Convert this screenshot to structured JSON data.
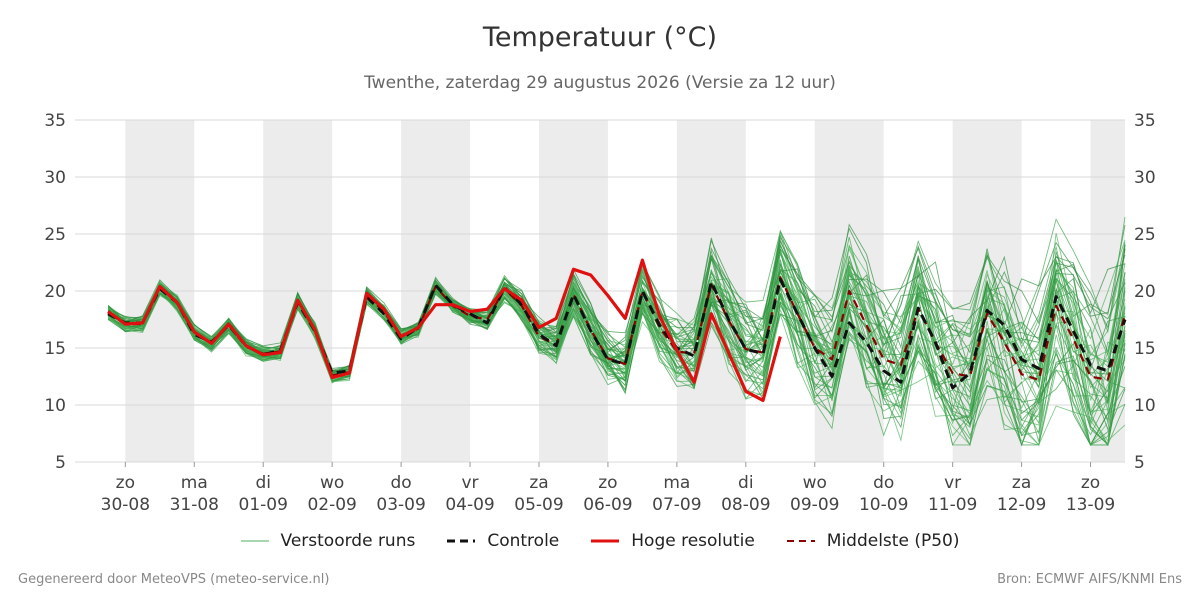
{
  "header": {
    "title": "Temperatuur (°C)",
    "subtitle": "Twenthe, zaterdag 29 augustus 2026 (Versie za 12 uur)"
  },
  "footer": {
    "left": "Gegenereerd door MeteoVPS (meteo-service.nl)",
    "right": "Bron: ECMWF AIFS/KNMI Ens"
  },
  "legend": [
    {
      "label": "Verstoorde runs",
      "color": "#3aa24a",
      "style": "thin-solid"
    },
    {
      "label": "Controle",
      "color": "#111111",
      "style": "dashed"
    },
    {
      "label": "Hoge resolutie",
      "color": "#e01010",
      "style": "solid"
    },
    {
      "label": "Middelste (P50)",
      "color": "#8b0000",
      "style": "dashed"
    }
  ],
  "chart_data": {
    "type": "line",
    "title": "Temperatuur (°C)",
    "ylim": [
      5,
      35
    ],
    "yticks": [
      5,
      10,
      15,
      20,
      25,
      30,
      35
    ],
    "grid": true,
    "legend_position": "bottom",
    "x_unit": "days since 30-08 00:00 (axis labels shown as day + date)",
    "xlim": [
      -0.73,
      14.5
    ],
    "x_tick_labels": [
      {
        "day": "zo",
        "date": "30-08",
        "x": 0
      },
      {
        "day": "ma",
        "date": "31-08",
        "x": 1
      },
      {
        "day": "di",
        "date": "01-09",
        "x": 2
      },
      {
        "day": "wo",
        "date": "02-09",
        "x": 3
      },
      {
        "day": "do",
        "date": "03-09",
        "x": 4
      },
      {
        "day": "vr",
        "date": "04-09",
        "x": 5
      },
      {
        "day": "za",
        "date": "05-09",
        "x": 6
      },
      {
        "day": "zo",
        "date": "06-09",
        "x": 7
      },
      {
        "day": "ma",
        "date": "07-09",
        "x": 8
      },
      {
        "day": "di",
        "date": "08-09",
        "x": 9
      },
      {
        "day": "wo",
        "date": "09-09",
        "x": 10
      },
      {
        "day": "do",
        "date": "10-09",
        "x": 11
      },
      {
        "day": "vr",
        "date": "11-09",
        "x": 12
      },
      {
        "day": "za",
        "date": "12-09",
        "x": 13
      },
      {
        "day": "zo",
        "date": "13-09",
        "x": 14
      }
    ],
    "shaded_bands": [
      [
        0,
        1
      ],
      [
        2,
        3
      ],
      [
        4,
        5
      ],
      [
        6,
        7
      ],
      [
        8,
        9
      ],
      [
        10,
        11
      ],
      [
        12,
        13
      ],
      [
        14,
        14.5
      ]
    ],
    "x": [
      -0.25,
      0,
      0.25,
      0.5,
      0.75,
      1,
      1.25,
      1.5,
      1.75,
      2,
      2.25,
      2.5,
      2.75,
      3,
      3.25,
      3.5,
      3.75,
      4,
      4.25,
      4.5,
      4.75,
      5,
      5.25,
      5.5,
      5.75,
      6,
      6.25,
      6.5,
      6.75,
      7,
      7.25,
      7.5,
      7.75,
      8,
      8.25,
      8.5,
      8.75,
      9,
      9.25,
      9.5,
      9.75,
      10,
      10.25,
      10.5,
      10.75,
      11,
      11.25,
      11.5,
      11.75,
      12,
      12.25,
      12.5,
      12.75,
      13,
      13.25,
      13.5,
      13.75,
      14,
      14.25,
      14.5
    ],
    "series": [
      {
        "name": "Controle",
        "color": "#111111",
        "dash": "dashed",
        "values": [
          18.0,
          17.2,
          17.2,
          20.2,
          19.0,
          16.2,
          15.5,
          17.0,
          15.2,
          14.4,
          14.8,
          19.0,
          16.5,
          12.8,
          13.0,
          19.5,
          18.0,
          15.8,
          16.8,
          20.5,
          18.8,
          18.0,
          17.2,
          20.3,
          18.8,
          16.2,
          15.2,
          19.7,
          16.5,
          14.0,
          13.6,
          20.0,
          17.0,
          15.0,
          14.3,
          20.8,
          17.5,
          14.9,
          14.5,
          21.0,
          18.0,
          15.0,
          12.5,
          17.2,
          15.5,
          13.0,
          12.0,
          18.5,
          15.5,
          11.5,
          12.8,
          18.3,
          17.0,
          14.0,
          13.2,
          19.5,
          16.5,
          13.5,
          13.0,
          17.5
        ]
      },
      {
        "name": "Hoge resolutie",
        "color": "#e01010",
        "dash": "solid",
        "values": [
          18.2,
          17.1,
          17.2,
          20.4,
          19.0,
          16.4,
          15.4,
          17.1,
          15.2,
          14.4,
          14.6,
          19.2,
          16.6,
          12.4,
          12.8,
          19.8,
          18.4,
          16.0,
          16.8,
          18.8,
          18.8,
          18.2,
          18.4,
          20.2,
          19.2,
          16.8,
          17.6,
          21.9,
          21.4,
          19.6,
          17.6,
          22.7,
          17.8,
          14.8,
          12.0,
          18.0,
          14.6,
          11.2,
          10.4,
          16.0,
          null,
          null,
          null,
          null,
          null,
          null,
          null,
          null,
          null,
          null,
          null,
          null,
          null,
          null,
          null,
          null,
          null,
          null,
          null,
          null
        ]
      },
      {
        "name": "Middelste (P50)",
        "color": "#8b0000",
        "dash": "dashed",
        "values": [
          18.1,
          17.1,
          17.1,
          20.3,
          19.0,
          16.3,
          15.4,
          17.0,
          15.1,
          14.5,
          14.7,
          19.1,
          16.6,
          12.6,
          12.9,
          19.6,
          18.2,
          16.0,
          16.7,
          20.4,
          18.7,
          17.8,
          17.5,
          20.2,
          18.7,
          16.0,
          15.3,
          19.7,
          16.6,
          14.1,
          13.6,
          20.0,
          16.8,
          14.7,
          14.5,
          20.6,
          17.4,
          14.9,
          14.6,
          21.2,
          18.0,
          15.0,
          14.0,
          20.0,
          17.0,
          14.0,
          13.5,
          18.5,
          15.5,
          12.8,
          12.5,
          18.0,
          15.5,
          12.7,
          12.2,
          18.7,
          15.8,
          12.5,
          12.2,
          18.0
        ]
      }
    ],
    "ensemble_members_note": "about 50 thin green 'Verstoorde runs' lines with the same diurnal cycle; their spread grows from about ±1 °C to ±8 °C towards the end of the period"
  }
}
